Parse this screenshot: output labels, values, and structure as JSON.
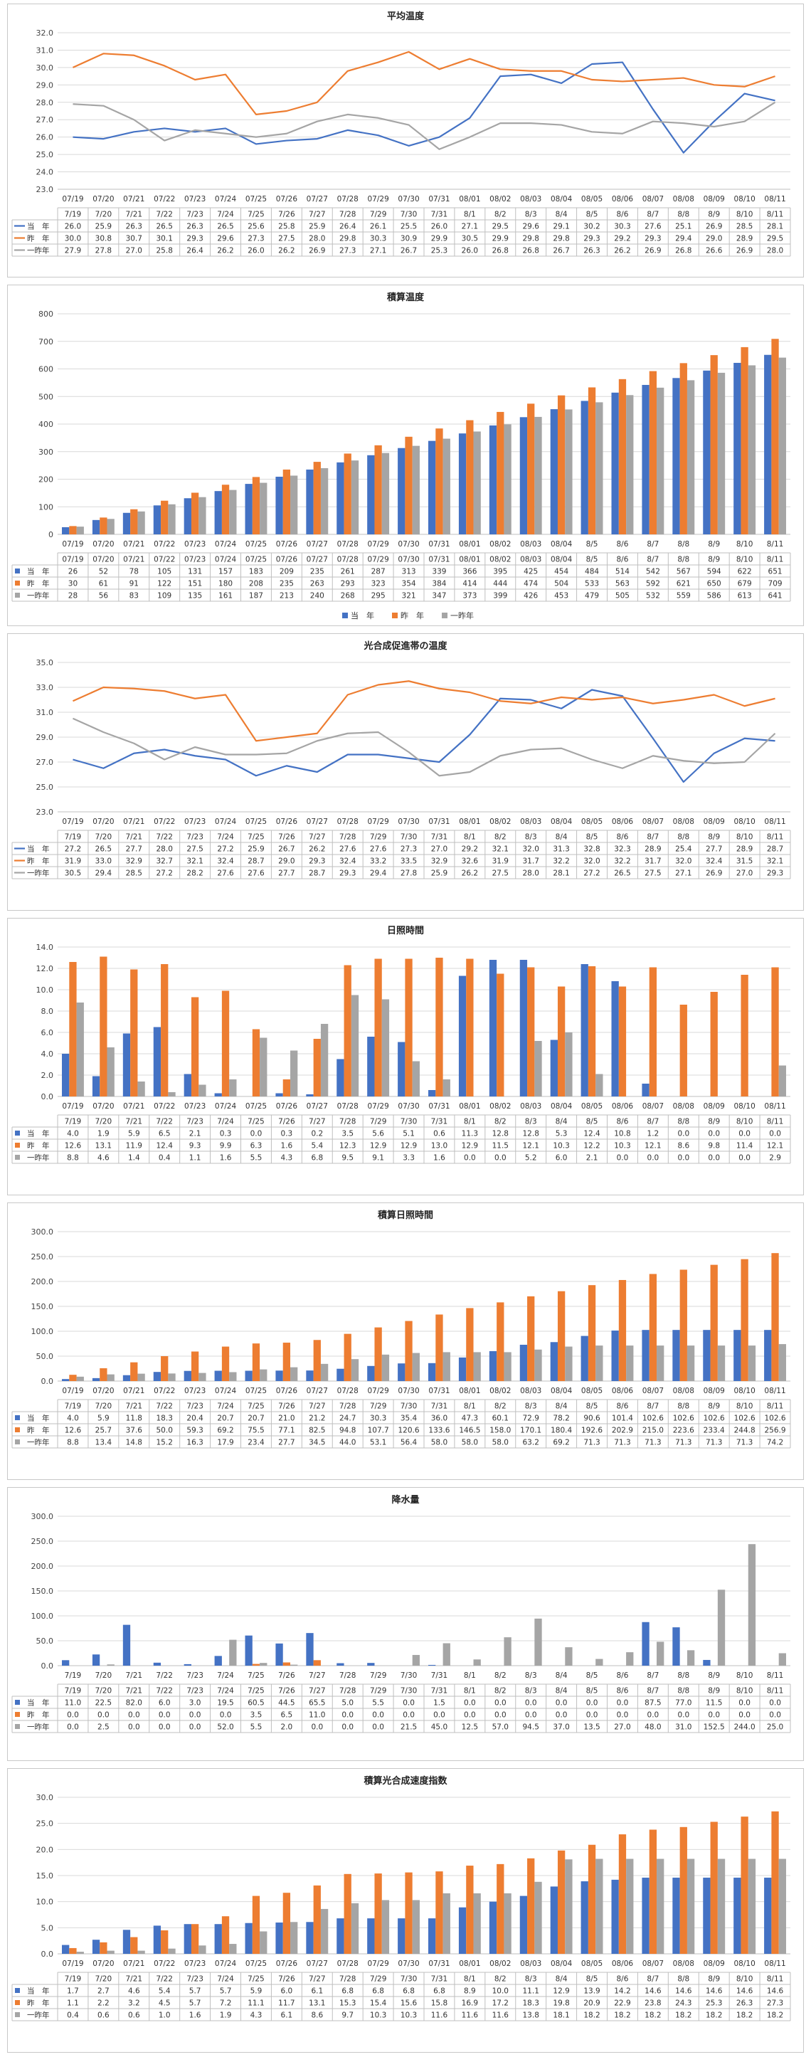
{
  "colors": {
    "current": "#4472C4",
    "last": "#ED7D31",
    "twoago": "#A5A5A5",
    "grid": "#d9d9d9"
  },
  "dates": {
    "d1": [
      "07/19",
      "07/20",
      "07/21",
      "07/22",
      "07/23",
      "07/24",
      "07/25",
      "07/26",
      "07/27",
      "07/28",
      "07/29",
      "07/30",
      "07/31",
      "08/01",
      "08/02",
      "08/03",
      "08/04",
      "08/05",
      "08/06",
      "08/07",
      "08/08",
      "08/09",
      "08/10",
      "08/11"
    ],
    "d2": [
      "7/19",
      "7/20",
      "7/21",
      "7/22",
      "7/23",
      "7/24",
      "7/25",
      "7/26",
      "7/27",
      "7/28",
      "7/29",
      "7/30",
      "7/31",
      "8/1",
      "8/2",
      "8/3",
      "8/4",
      "8/5",
      "8/6",
      "8/7",
      "8/8",
      "8/9",
      "8/10",
      "8/11"
    ],
    "d3": [
      "07/19",
      "07/20",
      "07/21",
      "07/22",
      "07/23",
      "07/24",
      "07/25",
      "07/26",
      "07/27",
      "07/28",
      "07/29",
      "07/30",
      "07/31",
      "08/01",
      "08/02",
      "08/03",
      "08/04",
      "8/5",
      "8/6",
      "8/7",
      "8/8",
      "8/9",
      "8/10",
      "8/11"
    ],
    "d4": [
      "7/19",
      "7/20",
      "7/21",
      "7/22",
      "7/23",
      "7/24",
      "7/25",
      "7/26",
      "7/27",
      "7/28",
      "7/29",
      "7/30",
      "7/31",
      "8/1",
      "8/2",
      "8/3",
      "8/4",
      "8/5",
      "8/6",
      "8/7",
      "8/8",
      "8/9",
      "8/10",
      "8/11"
    ],
    "d5": [
      "07/19",
      "07/20",
      "07/21",
      "07/22",
      "07/23",
      "07/24",
      "07/25",
      "07/26",
      "07/27",
      "07/28",
      "07/29",
      "07/30",
      "07/31",
      "08/01",
      "08/02",
      "08/03",
      "08/04",
      "08/05",
      "08/06",
      "08/07",
      "08/08",
      "08/09",
      "08/10",
      "08/11"
    ]
  },
  "chart_data": [
    {
      "title": "平均温度",
      "type": "line",
      "ylim": [
        23.0,
        32.0
      ],
      "ystep": 1.0,
      "ydec": 1,
      "axis": "d1",
      "table": "d2",
      "tdec": 1,
      "series": [
        {
          "name": "当　年",
          "values": [
            26.0,
            25.9,
            26.3,
            26.5,
            26.3,
            26.5,
            25.6,
            25.8,
            25.9,
            26.4,
            26.1,
            25.5,
            26.0,
            27.1,
            29.5,
            29.6,
            29.1,
            30.2,
            30.3,
            27.6,
            25.1,
            26.9,
            28.5,
            28.1
          ]
        },
        {
          "name": "昨　年",
          "values": [
            30.0,
            30.8,
            30.7,
            30.1,
            29.3,
            29.6,
            27.3,
            27.5,
            28.0,
            29.8,
            30.3,
            30.9,
            29.9,
            30.5,
            29.9,
            29.8,
            29.8,
            29.3,
            29.2,
            29.3,
            29.4,
            29.0,
            28.9,
            29.5
          ]
        },
        {
          "name": "一昨年",
          "values": [
            27.9,
            27.8,
            27.0,
            25.8,
            26.4,
            26.2,
            26.0,
            26.2,
            26.9,
            27.3,
            27.1,
            26.7,
            25.3,
            26.0,
            26.8,
            26.8,
            26.7,
            26.3,
            26.2,
            26.9,
            26.8,
            26.6,
            26.9,
            28.0
          ]
        }
      ]
    },
    {
      "title": "積算温度",
      "type": "bar",
      "ylim": [
        0,
        800
      ],
      "ystep": 100,
      "ydec": 0,
      "axis": "d3",
      "table": "d3",
      "tdec": 0,
      "legend": true,
      "series": [
        {
          "name": "当　年",
          "values": [
            26,
            52,
            78,
            105,
            131,
            157,
            183,
            209,
            235,
            261,
            287,
            313,
            339,
            366,
            395,
            425,
            454,
            484,
            514,
            542,
            567,
            594,
            622,
            651
          ]
        },
        {
          "name": "昨　年",
          "values": [
            30,
            61,
            91,
            122,
            151,
            180,
            208,
            235,
            263,
            293,
            323,
            354,
            384,
            414,
            444,
            474,
            504,
            533,
            563,
            592,
            621,
            650,
            679,
            709
          ]
        },
        {
          "name": "一昨年",
          "values": [
            28,
            56,
            83,
            109,
            135,
            161,
            187,
            213,
            240,
            268,
            295,
            321,
            347,
            373,
            399,
            426,
            453,
            479,
            505,
            532,
            559,
            586,
            613,
            641
          ]
        }
      ]
    },
    {
      "title": "光合成促進帯の温度",
      "type": "line",
      "ylim": [
        23.0,
        35.0
      ],
      "ystep": 2.0,
      "ydec": 1,
      "axis": "d1",
      "table": "d4",
      "tdec": 1,
      "series": [
        {
          "name": "当　年",
          "values": [
            27.2,
            26.5,
            27.7,
            28.0,
            27.5,
            27.2,
            25.9,
            26.7,
            26.2,
            27.6,
            27.6,
            27.3,
            27.0,
            29.2,
            32.1,
            32.0,
            31.3,
            32.8,
            32.3,
            28.9,
            25.4,
            27.7,
            28.9,
            28.7
          ]
        },
        {
          "name": "昨　年",
          "values": [
            31.9,
            33.0,
            32.9,
            32.7,
            32.1,
            32.4,
            28.7,
            29.0,
            29.3,
            32.4,
            33.2,
            33.5,
            32.9,
            32.6,
            31.9,
            31.7,
            32.2,
            32.0,
            32.2,
            31.7,
            32.0,
            32.4,
            31.5,
            32.1
          ]
        },
        {
          "name": "一昨年",
          "values": [
            30.5,
            29.4,
            28.5,
            27.2,
            28.2,
            27.6,
            27.6,
            27.7,
            28.7,
            29.3,
            29.4,
            27.8,
            25.9,
            26.2,
            27.5,
            28.0,
            28.1,
            27.2,
            26.5,
            27.5,
            27.1,
            26.9,
            27.0,
            29.3
          ]
        }
      ]
    },
    {
      "title": "日照時間",
      "type": "bar",
      "ylim": [
        0.0,
        14.0
      ],
      "ystep": 2.0,
      "ydec": 1,
      "axis": "d1",
      "table": "d4",
      "tdec": 1,
      "series": [
        {
          "name": "当　年",
          "values": [
            4.0,
            1.9,
            5.9,
            6.5,
            2.1,
            0.3,
            0.0,
            0.3,
            0.2,
            3.5,
            5.6,
            5.1,
            0.6,
            11.3,
            12.8,
            12.8,
            5.3,
            12.4,
            10.8,
            1.2,
            0.0,
            0.0,
            0.0,
            0.0
          ]
        },
        {
          "name": "昨　年",
          "values": [
            12.6,
            13.1,
            11.9,
            12.4,
            9.3,
            9.9,
            6.3,
            1.6,
            5.4,
            12.3,
            12.9,
            12.9,
            13.0,
            12.9,
            11.5,
            12.1,
            10.3,
            12.2,
            10.3,
            12.1,
            8.6,
            9.8,
            11.4,
            12.1
          ]
        },
        {
          "name": "一昨年",
          "values": [
            8.8,
            4.6,
            1.4,
            0.4,
            1.1,
            1.6,
            5.5,
            4.3,
            6.8,
            9.5,
            9.1,
            3.3,
            1.6,
            0.0,
            0.0,
            5.2,
            6.0,
            2.1,
            0.0,
            0.0,
            0.0,
            0.0,
            0.0,
            2.9
          ]
        }
      ]
    },
    {
      "title": "積算日照時間",
      "type": "bar",
      "ylim": [
        0.0,
        300.0
      ],
      "ystep": 50.0,
      "ydec": 1,
      "axis": "d1",
      "table": "d4",
      "tdec": 1,
      "series": [
        {
          "name": "当　年",
          "values": [
            4.0,
            5.9,
            11.8,
            18.3,
            20.4,
            20.7,
            20.7,
            21.0,
            21.2,
            24.7,
            30.3,
            35.4,
            36.0,
            47.3,
            60.1,
            72.9,
            78.2,
            90.6,
            101.4,
            102.6,
            102.6,
            102.6,
            102.6,
            102.6
          ]
        },
        {
          "name": "昨　年",
          "values": [
            12.6,
            25.7,
            37.6,
            50.0,
            59.3,
            69.2,
            75.5,
            77.1,
            82.5,
            94.8,
            107.7,
            120.6,
            133.6,
            146.5,
            158.0,
            170.1,
            180.4,
            192.6,
            202.9,
            215.0,
            223.6,
            233.4,
            244.8,
            256.9
          ]
        },
        {
          "name": "一昨年",
          "values": [
            8.8,
            13.4,
            14.8,
            15.2,
            16.3,
            17.9,
            23.4,
            27.7,
            34.5,
            44.0,
            53.1,
            56.4,
            58.0,
            58.0,
            58.0,
            63.2,
            69.2,
            71.3,
            71.3,
            71.3,
            71.3,
            71.3,
            71.3,
            74.2
          ]
        }
      ]
    },
    {
      "title": "降水量",
      "type": "bar",
      "ylim": [
        0.0,
        300.0
      ],
      "ystep": 50.0,
      "ydec": 1,
      "axis": "d4",
      "table": "d4",
      "tdec": 1,
      "series": [
        {
          "name": "当　年",
          "values": [
            11.0,
            22.5,
            82.0,
            6.0,
            3.0,
            19.5,
            60.5,
            44.5,
            65.5,
            5.0,
            5.5,
            0.0,
            1.5,
            0.0,
            0.0,
            0.0,
            0.0,
            0.0,
            0.0,
            87.5,
            77.0,
            11.5,
            0.0,
            0.0
          ]
        },
        {
          "name": "昨　年",
          "values": [
            0.0,
            0.0,
            0.0,
            0.0,
            0.0,
            0.0,
            3.5,
            6.5,
            11.0,
            0.0,
            0.0,
            0.0,
            0.0,
            0.0,
            0.0,
            0.0,
            0.0,
            0.0,
            0.0,
            0.0,
            0.0,
            0.0,
            0.0,
            0.0
          ]
        },
        {
          "name": "一昨年",
          "values": [
            0.0,
            2.5,
            0.0,
            0.0,
            0.0,
            52.0,
            5.5,
            2.0,
            0.0,
            0.0,
            0.0,
            21.5,
            45.0,
            12.5,
            57.0,
            94.5,
            37.0,
            13.5,
            27.0,
            48.0,
            31.0,
            152.5,
            244.0,
            25.0
          ]
        }
      ]
    },
    {
      "title": "積算光合成速度指数",
      "type": "bar",
      "ylim": [
        0.0,
        30.0
      ],
      "ystep": 5.0,
      "ydec": 1,
      "axis": "d5",
      "table": "d4",
      "tdec": 1,
      "series": [
        {
          "name": "当　年",
          "values": [
            1.7,
            2.7,
            4.6,
            5.4,
            5.7,
            5.7,
            5.9,
            6.0,
            6.1,
            6.8,
            6.8,
            6.8,
            6.8,
            8.9,
            10.0,
            11.1,
            12.9,
            13.9,
            14.2,
            14.6,
            14.6,
            14.6,
            14.6,
            14.6
          ]
        },
        {
          "name": "昨　年",
          "values": [
            1.1,
            2.2,
            3.2,
            4.5,
            5.7,
            7.2,
            11.1,
            11.7,
            13.1,
            15.3,
            15.4,
            15.6,
            15.8,
            16.9,
            17.2,
            18.3,
            19.8,
            20.9,
            22.9,
            23.8,
            24.3,
            25.3,
            26.3,
            27.3
          ]
        },
        {
          "name": "一昨年",
          "values": [
            0.4,
            0.6,
            0.6,
            1.0,
            1.6,
            1.9,
            4.3,
            6.1,
            8.6,
            9.7,
            10.3,
            10.3,
            11.6,
            11.6,
            11.6,
            13.8,
            18.1,
            18.2,
            18.2,
            18.2,
            18.2,
            18.2,
            18.2,
            18.2
          ]
        }
      ]
    }
  ]
}
